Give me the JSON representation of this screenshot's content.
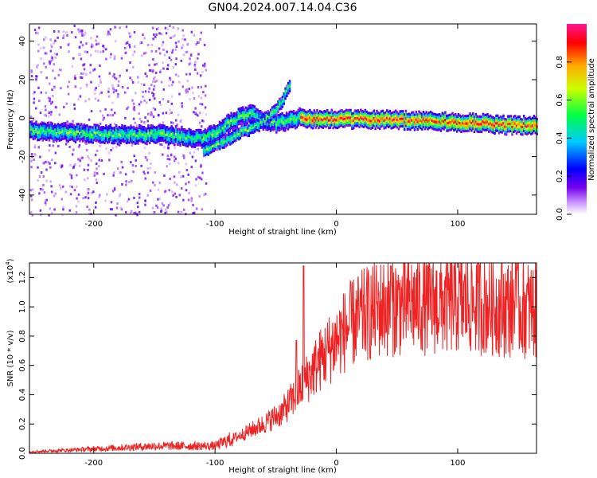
{
  "title": "GN04.2024.007.14.04.C36",
  "chart_data": [
    {
      "type": "heatmap",
      "xlabel": "Height of straight line (km)",
      "ylabel": "Frequency (Hz)",
      "xlim": [
        -253,
        165
      ],
      "ylim": [
        -50,
        49
      ],
      "xticks": [
        -200,
        -100,
        0,
        100
      ],
      "yticks": [
        -40,
        -20,
        0,
        20,
        40
      ],
      "colorbar": {
        "label": "Normalized spectral amplitude",
        "range": [
          0,
          1
        ],
        "ticks": [
          "0.0",
          "0.2",
          "0.4",
          "0.6",
          "0.8"
        ]
      },
      "ridge": {
        "x": [
          -253,
          -220,
          -180,
          -140,
          -110,
          -100,
          -90,
          -80,
          -70,
          -60,
          -50,
          -40,
          -35,
          -30,
          -20,
          0,
          40,
          80,
          120,
          140,
          165
        ],
        "y": [
          -6,
          -7,
          -8,
          -8,
          -10,
          -7,
          -2,
          1,
          3,
          -1,
          -2,
          -1,
          0,
          1,
          0,
          0,
          0,
          -1,
          -2,
          -3,
          -3
        ]
      },
      "branch": {
        "x": [
          -110,
          -95,
          -80,
          -65,
          -55,
          -45,
          -38
        ],
        "y": [
          -16,
          -12,
          -7,
          -3,
          2,
          10,
          20
        ]
      },
      "grid": false,
      "colors": [
        "#ffffff",
        "#8800ee",
        "#0000ff",
        "#00ffff",
        "#00ff00",
        "#ffff00",
        "#ff0000",
        "#ff1493"
      ]
    },
    {
      "type": "line",
      "xlabel": "Height of straight line (km)",
      "ylabel": "SNR (10 * v/v)",
      "yscale_label": "(x10",
      "yscale_exp": "4",
      "yscale_close": ")",
      "xlim": [
        -253,
        165
      ],
      "ylim": [
        0,
        1.3
      ],
      "xticks": [
        -200,
        -100,
        0,
        100
      ],
      "yticks": [
        "0.0",
        "0.2",
        "0.4",
        "0.6",
        "0.8",
        "1.0",
        "1.2"
      ],
      "envelope": {
        "x": [
          -253,
          -200,
          -150,
          -120,
          -100,
          -80,
          -60,
          -45,
          -35,
          -25,
          -15,
          -5,
          5,
          15,
          25,
          40,
          60,
          80,
          100,
          120,
          140,
          165
        ],
        "y": [
          0.01,
          0.03,
          0.05,
          0.05,
          0.05,
          0.12,
          0.2,
          0.28,
          0.38,
          0.5,
          0.62,
          0.72,
          0.82,
          0.9,
          0.95,
          1.0,
          1.02,
          1.02,
          1.03,
          1.02,
          1.0,
          0.98
        ]
      },
      "spikes": [
        {
          "x": -27,
          "y": 1.28
        },
        {
          "x": -33,
          "y": 0.77
        },
        {
          "x": 148,
          "y": 1.3
        },
        {
          "x": 45,
          "y": 1.28
        }
      ],
      "color": "#ee2222",
      "grid": false
    }
  ]
}
